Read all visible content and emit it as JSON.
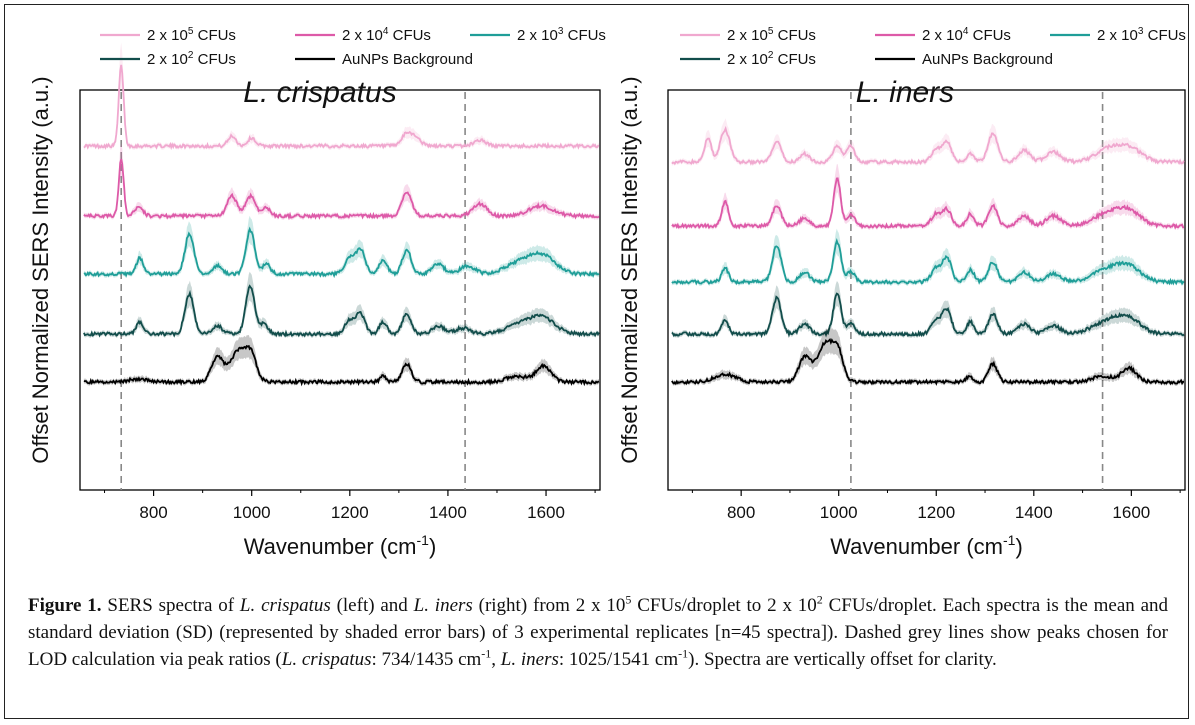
{
  "chart_data": [
    {
      "type": "line",
      "title": "L. crispatus",
      "xlabel": "Wavenumber (cm",
      "xlabel_sup": "-1",
      "xlabel_close": ")",
      "ylabel": "Offset Normalized SERS Intensity (a.u.)",
      "xlim": [
        650,
        1710
      ],
      "xticks": [
        "800",
        "1000",
        "1200",
        "1400",
        "1600"
      ],
      "dashed_lines": [
        734,
        1435
      ],
      "series": [
        {
          "name": "2 x 10^5 CFUs",
          "color": "#f0a8cf",
          "offset": 0.86,
          "peaks": [
            [
              734,
              0.2,
              5
            ],
            [
              960,
              0.025,
              8
            ],
            [
              1000,
              0.02,
              8
            ],
            [
              1316,
              0.03,
              10
            ],
            [
              1335,
              0.02,
              10
            ],
            [
              1465,
              0.015,
              12
            ]
          ]
        },
        {
          "name": "2 x 10^4 CFUs",
          "color": "#dd5aa8",
          "offset": 0.685,
          "peaks": [
            [
              734,
              0.14,
              5
            ],
            [
              770,
              0.025,
              8
            ],
            [
              960,
              0.05,
              10
            ],
            [
              998,
              0.05,
              10
            ],
            [
              1030,
              0.02,
              8
            ],
            [
              1316,
              0.06,
              10
            ],
            [
              1465,
              0.03,
              14
            ],
            [
              1590,
              0.025,
              25
            ]
          ]
        },
        {
          "name": "2 x 10^3 CFUs",
          "color": "#1f9e98",
          "offset": 0.54,
          "peaks": [
            [
              772,
              0.04,
              7
            ],
            [
              873,
              0.1,
              9
            ],
            [
              930,
              0.02,
              10
            ],
            [
              997,
              0.11,
              9
            ],
            [
              1030,
              0.025,
              8
            ],
            [
              1200,
              0.04,
              10
            ],
            [
              1222,
              0.06,
              9
            ],
            [
              1268,
              0.035,
              8
            ],
            [
              1316,
              0.06,
              9
            ],
            [
              1380,
              0.025,
              12
            ],
            [
              1440,
              0.02,
              15
            ],
            [
              1550,
              0.03,
              30
            ],
            [
              1595,
              0.04,
              25
            ]
          ]
        },
        {
          "name": "2 x 10^2 CFUs",
          "color": "#124d4b",
          "offset": 0.39,
          "peaks": [
            [
              772,
              0.03,
              7
            ],
            [
              873,
              0.1,
              9
            ],
            [
              930,
              0.02,
              10
            ],
            [
              997,
              0.12,
              9
            ],
            [
              1025,
              0.025,
              8
            ],
            [
              1200,
              0.035,
              10
            ],
            [
              1222,
              0.05,
              9
            ],
            [
              1268,
              0.03,
              8
            ],
            [
              1316,
              0.05,
              9
            ],
            [
              1380,
              0.02,
              12
            ],
            [
              1430,
              0.015,
              15
            ],
            [
              1550,
              0.025,
              30
            ],
            [
              1595,
              0.035,
              25
            ]
          ]
        },
        {
          "name": "AuNPs Background",
          "color": "#000000",
          "offset": 0.27,
          "peaks": [
            [
              930,
              0.06,
              12
            ],
            [
              975,
              0.08,
              18
            ],
            [
              1000,
              0.05,
              10
            ],
            [
              1316,
              0.045,
              9
            ],
            [
              1268,
              0.015,
              6
            ],
            [
              1595,
              0.04,
              15
            ],
            [
              1540,
              0.015,
              20
            ],
            [
              770,
              0.008,
              20
            ]
          ]
        }
      ]
    },
    {
      "type": "line",
      "title": "L. iners",
      "xlabel": "Wavenumber (cm",
      "xlabel_sup": "-1",
      "xlabel_close": ")",
      "ylabel": "Offset Normalized SERS Intensity (a.u.)",
      "xlim": [
        650,
        1710
      ],
      "xticks": [
        "800",
        "1000",
        "1200",
        "1400",
        "1600"
      ],
      "dashed_lines": [
        1025,
        1541
      ],
      "series": [
        {
          "name": "2 x 10^5 CFUs",
          "color": "#f0a8cf",
          "offset": 0.82,
          "peaks": [
            [
              732,
              0.06,
              7
            ],
            [
              767,
              0.08,
              10
            ],
            [
              873,
              0.05,
              9
            ],
            [
              930,
              0.02,
              10
            ],
            [
              997,
              0.04,
              9
            ],
            [
              1025,
              0.04,
              8
            ],
            [
              1200,
              0.03,
              10
            ],
            [
              1222,
              0.05,
              9
            ],
            [
              1270,
              0.02,
              8
            ],
            [
              1316,
              0.07,
              10
            ],
            [
              1380,
              0.03,
              12
            ],
            [
              1440,
              0.025,
              15
            ],
            [
              1550,
              0.03,
              25
            ],
            [
              1595,
              0.035,
              25
            ]
          ]
        },
        {
          "name": "2 x 10^4 CFUs",
          "color": "#dd5aa8",
          "offset": 0.66,
          "peaks": [
            [
              767,
              0.06,
              7
            ],
            [
              873,
              0.05,
              9
            ],
            [
              930,
              0.02,
              10
            ],
            [
              997,
              0.12,
              7
            ],
            [
              1025,
              0.03,
              8
            ],
            [
              1200,
              0.03,
              10
            ],
            [
              1222,
              0.04,
              9
            ],
            [
              1270,
              0.03,
              8
            ],
            [
              1316,
              0.05,
              9
            ],
            [
              1380,
              0.025,
              12
            ],
            [
              1440,
              0.025,
              15
            ],
            [
              1550,
              0.03,
              28
            ],
            [
              1595,
              0.035,
              25
            ]
          ]
        },
        {
          "name": "2 x 10^3 CFUs",
          "color": "#1f9e98",
          "offset": 0.52,
          "peaks": [
            [
              767,
              0.035,
              7
            ],
            [
              873,
              0.09,
              9
            ],
            [
              930,
              0.025,
              10
            ],
            [
              997,
              0.1,
              8
            ],
            [
              1025,
              0.025,
              8
            ],
            [
              1200,
              0.035,
              10
            ],
            [
              1222,
              0.06,
              9
            ],
            [
              1270,
              0.03,
              8
            ],
            [
              1316,
              0.05,
              9
            ],
            [
              1380,
              0.025,
              12
            ],
            [
              1440,
              0.02,
              15
            ],
            [
              1550,
              0.03,
              30
            ],
            [
              1595,
              0.035,
              25
            ]
          ]
        },
        {
          "name": "2 x 10^2 CFUs",
          "color": "#124d4b",
          "offset": 0.39,
          "peaks": [
            [
              767,
              0.035,
              7
            ],
            [
              873,
              0.09,
              9
            ],
            [
              930,
              0.025,
              10
            ],
            [
              997,
              0.1,
              8
            ],
            [
              1025,
              0.025,
              8
            ],
            [
              1200,
              0.035,
              10
            ],
            [
              1222,
              0.06,
              9
            ],
            [
              1270,
              0.03,
              8
            ],
            [
              1316,
              0.05,
              9
            ],
            [
              1380,
              0.025,
              12
            ],
            [
              1440,
              0.02,
              15
            ],
            [
              1550,
              0.03,
              30
            ],
            [
              1595,
              0.035,
              25
            ]
          ]
        },
        {
          "name": "AuNPs Background",
          "color": "#000000",
          "offset": 0.27,
          "peaks": [
            [
              767,
              0.02,
              20
            ],
            [
              930,
              0.06,
              12
            ],
            [
              975,
              0.1,
              18
            ],
            [
              1000,
              0.05,
              10
            ],
            [
              1316,
              0.045,
              9
            ],
            [
              1268,
              0.015,
              6
            ],
            [
              1595,
              0.035,
              15
            ],
            [
              1540,
              0.015,
              20
            ]
          ]
        }
      ]
    }
  ],
  "legend": {
    "entries": [
      {
        "base": "2 x 10",
        "exp": "5",
        "tail": " CFUs",
        "color": "#f0a8cf"
      },
      {
        "base": "2 x 10",
        "exp": "4",
        "tail": " CFUs",
        "color": "#dd5aa8"
      },
      {
        "base": "2 x 10",
        "exp": "3",
        "tail": " CFUs",
        "color": "#1f9e98"
      },
      {
        "base": "2 x 10",
        "exp": "2",
        "tail": " CFUs",
        "color": "#124d4b"
      },
      {
        "base": "AuNPs Background",
        "exp": "",
        "tail": "",
        "color": "#000000"
      }
    ]
  },
  "caption": {
    "label": "Figure 1.",
    "p1": " SERS spectra of ",
    "sp1": "L. crispatus",
    "p2": " (left) and ",
    "sp2": "L. iners",
    "p3": " (right) from 2 x 10",
    "e1": "5",
    "p4": " CFUs/droplet to 2 x 10",
    "e2": "2",
    "p5": " CFUs/droplet. Each spectra is the mean and standard deviation (SD) (represented by shaded error bars) of 3 experimental replicates [n=45 spectra]). Dashed grey lines show peaks chosen for LOD calculation via peak ratios (",
    "sp3": "L. crispatus",
    "p6": ": 734/1435 cm",
    "e3": "-1",
    "p7": ", ",
    "sp4": "L. iners",
    "p8": ": 1025/1541 cm",
    "e4": "-1",
    "p9": "). Spectra are vertically offset for clarity."
  },
  "colors": {
    "dashed": "#888888",
    "frame": "#222222"
  }
}
